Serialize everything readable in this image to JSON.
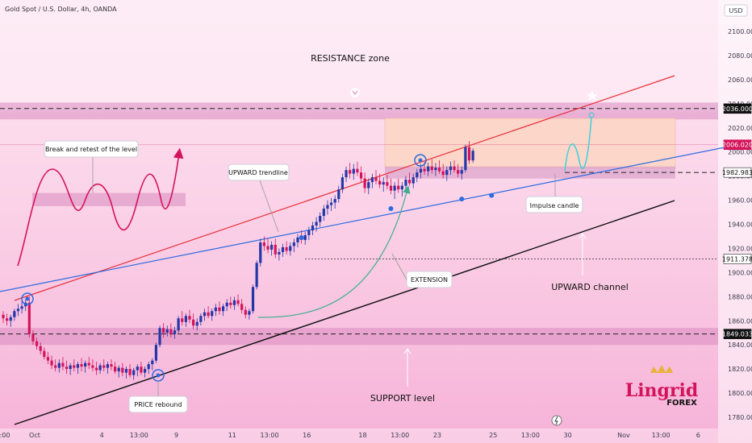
{
  "chart_data": {
    "type": "candlestick",
    "title": "Gold Spot / U.S. Dollar, 4h, OANDA",
    "currency_label": "USD",
    "y_ticks": [
      1780,
      1800,
      1820,
      1840,
      1860,
      1880,
      1900,
      1920,
      1940,
      1960,
      1980,
      2000,
      2020,
      2040,
      2060,
      2080,
      2100
    ],
    "y_tick_labels": [
      "1780.000",
      "1800.000",
      "1820.000",
      "1840.000",
      "1860.000",
      "1880.000",
      "1900.000",
      "1920.000",
      "1940.000",
      "1960.000",
      "1980.000",
      "2000.000",
      "2020.000",
      "2040.000",
      "2060.000",
      "2080.000",
      "2100.000"
    ],
    "x_ticks": [
      {
        "label": ":00",
        "bar": 0
      },
      {
        "label": "Oct",
        "bar": 8
      },
      {
        "label": "4",
        "bar": 26
      },
      {
        "label": "13:00",
        "bar": 36
      },
      {
        "label": "9",
        "bar": 46
      },
      {
        "label": "11",
        "bar": 61
      },
      {
        "label": "13:00",
        "bar": 71
      },
      {
        "label": "16",
        "bar": 81
      },
      {
        "label": "18",
        "bar": 96
      },
      {
        "label": "13:00",
        "bar": 106
      },
      {
        "label": "23",
        "bar": 116
      },
      {
        "label": "25",
        "bar": 131
      },
      {
        "label": "13:00",
        "bar": 141
      },
      {
        "label": "30",
        "bar": 151
      },
      {
        "label": "Nov",
        "bar": 166
      },
      {
        "label": "13:00",
        "bar": 176
      },
      {
        "label": "6",
        "bar": 186
      }
    ],
    "price_labels": [
      {
        "value": 2036.0,
        "text": "2036.000",
        "style": "dark"
      },
      {
        "value": 2006.02,
        "text": "2006.020",
        "style": "red"
      },
      {
        "value": 1982.983,
        "text": "1982.983",
        "style": "white"
      },
      {
        "value": 1911.378,
        "text": "1911.378",
        "style": "white"
      },
      {
        "value": 1849.033,
        "text": "1849.033",
        "style": "dark"
      }
    ],
    "candles": [
      [
        1865,
        1868,
        1858,
        1862
      ],
      [
        1862,
        1866,
        1856,
        1860
      ],
      [
        1860,
        1865,
        1855,
        1863
      ],
      [
        1863,
        1870,
        1860,
        1868
      ],
      [
        1868,
        1874,
        1864,
        1870
      ],
      [
        1870,
        1876,
        1866,
        1872
      ],
      [
        1872,
        1878,
        1868,
        1875
      ],
      [
        1875,
        1880,
        1846,
        1849
      ],
      [
        1849,
        1852,
        1840,
        1843
      ],
      [
        1843,
        1846,
        1836,
        1839
      ],
      [
        1839,
        1842,
        1832,
        1835
      ],
      [
        1835,
        1838,
        1828,
        1830
      ],
      [
        1830,
        1834,
        1824,
        1827
      ],
      [
        1827,
        1831,
        1820,
        1823
      ],
      [
        1823,
        1828,
        1818,
        1821
      ],
      [
        1821,
        1828,
        1817,
        1825
      ],
      [
        1825,
        1830,
        1819,
        1822
      ],
      [
        1822,
        1827,
        1816,
        1820
      ],
      [
        1820,
        1825,
        1815,
        1823
      ],
      [
        1823,
        1828,
        1818,
        1821
      ],
      [
        1821,
        1826,
        1816,
        1824
      ],
      [
        1824,
        1829,
        1818,
        1822
      ],
      [
        1822,
        1827,
        1817,
        1825
      ],
      [
        1825,
        1830,
        1820,
        1823
      ],
      [
        1823,
        1828,
        1818,
        1821
      ],
      [
        1821,
        1826,
        1815,
        1819
      ],
      [
        1819,
        1825,
        1816,
        1823
      ],
      [
        1823,
        1828,
        1818,
        1821
      ],
      [
        1821,
        1826,
        1816,
        1824
      ],
      [
        1824,
        1828,
        1819,
        1822
      ],
      [
        1822,
        1826,
        1816,
        1818
      ],
      [
        1818,
        1823,
        1813,
        1821
      ],
      [
        1821,
        1825,
        1814,
        1817
      ],
      [
        1817,
        1822,
        1812,
        1820
      ],
      [
        1820,
        1824,
        1813,
        1815
      ],
      [
        1815,
        1821,
        1811,
        1819
      ],
      [
        1819,
        1824,
        1814,
        1822
      ],
      [
        1822,
        1826,
        1815,
        1817
      ],
      [
        1817,
        1822,
        1813,
        1820
      ],
      [
        1820,
        1826,
        1816,
        1824
      ],
      [
        1824,
        1829,
        1819,
        1827
      ],
      [
        1827,
        1842,
        1825,
        1840
      ],
      [
        1840,
        1856,
        1838,
        1854
      ],
      [
        1854,
        1858,
        1846,
        1850
      ],
      [
        1850,
        1856,
        1847,
        1853
      ],
      [
        1853,
        1858,
        1846,
        1849
      ],
      [
        1849,
        1855,
        1845,
        1852
      ],
      [
        1852,
        1864,
        1850,
        1862
      ],
      [
        1862,
        1868,
        1856,
        1859
      ],
      [
        1859,
        1866,
        1855,
        1864
      ],
      [
        1864,
        1869,
        1858,
        1861
      ],
      [
        1861,
        1866,
        1853,
        1856
      ],
      [
        1856,
        1862,
        1852,
        1859
      ],
      [
        1859,
        1866,
        1856,
        1864
      ],
      [
        1864,
        1870,
        1860,
        1867
      ],
      [
        1867,
        1872,
        1862,
        1864
      ],
      [
        1864,
        1870,
        1860,
        1868
      ],
      [
        1868,
        1874,
        1864,
        1871
      ],
      [
        1871,
        1876,
        1865,
        1868
      ],
      [
        1868,
        1874,
        1864,
        1872
      ],
      [
        1872,
        1878,
        1868,
        1875
      ],
      [
        1875,
        1880,
        1870,
        1873
      ],
      [
        1873,
        1880,
        1869,
        1877
      ],
      [
        1877,
        1882,
        1872,
        1874
      ],
      [
        1874,
        1878,
        1866,
        1869
      ],
      [
        1869,
        1872,
        1862,
        1865
      ],
      [
        1865,
        1870,
        1861,
        1868
      ],
      [
        1868,
        1890,
        1866,
        1888
      ],
      [
        1888,
        1910,
        1886,
        1908
      ],
      [
        1908,
        1928,
        1905,
        1925
      ],
      [
        1925,
        1930,
        1918,
        1922
      ],
      [
        1922,
        1928,
        1916,
        1919
      ],
      [
        1919,
        1926,
        1914,
        1923
      ],
      [
        1923,
        1928,
        1912,
        1915
      ],
      [
        1915,
        1920,
        1910,
        1917
      ],
      [
        1917,
        1924,
        1913,
        1921
      ],
      [
        1921,
        1926,
        1915,
        1918
      ],
      [
        1918,
        1925,
        1914,
        1922
      ],
      [
        1922,
        1928,
        1917,
        1925
      ],
      [
        1925,
        1932,
        1921,
        1929
      ],
      [
        1929,
        1935,
        1924,
        1927
      ],
      [
        1927,
        1934,
        1923,
        1931
      ],
      [
        1931,
        1938,
        1927,
        1935
      ],
      [
        1935,
        1942,
        1931,
        1939
      ],
      [
        1939,
        1946,
        1934,
        1942
      ],
      [
        1942,
        1950,
        1938,
        1947
      ],
      [
        1947,
        1956,
        1943,
        1953
      ],
      [
        1953,
        1960,
        1948,
        1956
      ],
      [
        1956,
        1962,
        1951,
        1958
      ],
      [
        1958,
        1964,
        1953,
        1961
      ],
      [
        1961,
        1972,
        1958,
        1969
      ],
      [
        1969,
        1982,
        1966,
        1979
      ],
      [
        1979,
        1988,
        1975,
        1985
      ],
      [
        1985,
        1991,
        1978,
        1982
      ],
      [
        1982,
        1990,
        1977,
        1986
      ],
      [
        1986,
        1992,
        1980,
        1983
      ],
      [
        1983,
        1988,
        1975,
        1978
      ],
      [
        1978,
        1983,
        1966,
        1970
      ],
      [
        1970,
        1978,
        1965,
        1975
      ],
      [
        1975,
        1982,
        1970,
        1979
      ],
      [
        1979,
        1985,
        1973,
        1976
      ],
      [
        1976,
        1982,
        1970,
        1973
      ],
      [
        1973,
        1979,
        1967,
        1975
      ],
      [
        1975,
        1981,
        1969,
        1972
      ],
      [
        1972,
        1978,
        1965,
        1968
      ],
      [
        1968,
        1975,
        1961,
        1972
      ],
      [
        1972,
        1978,
        1966,
        1969
      ],
      [
        1969,
        1975,
        1963,
        1972
      ],
      [
        1972,
        1980,
        1968,
        1977
      ],
      [
        1977,
        1983,
        1972,
        1974
      ],
      [
        1974,
        1982,
        1970,
        1979
      ],
      [
        1979,
        1986,
        1975,
        1983
      ],
      [
        1983,
        1990,
        1978,
        1986
      ],
      [
        1986,
        1992,
        1981,
        1984
      ],
      [
        1984,
        1991,
        1980,
        1988
      ],
      [
        1988,
        1994,
        1982,
        1985
      ],
      [
        1985,
        1991,
        1980,
        1987
      ],
      [
        1987,
        1993,
        1982,
        1984
      ],
      [
        1984,
        1990,
        1978,
        1981
      ],
      [
        1981,
        1988,
        1976,
        1985
      ],
      [
        1985,
        1992,
        1981,
        1988
      ],
      [
        1988,
        1993,
        1983,
        1985
      ],
      [
        1985,
        1990,
        1979,
        1982
      ],
      [
        1982,
        1988,
        1977,
        1985
      ],
      [
        1985,
        2006,
        1983,
        2004
      ],
      [
        2004,
        2009,
        1990,
        1993
      ],
      [
        1993,
        2003,
        1991,
        2001
      ]
    ],
    "projection_path": [
      [
        124,
        2001
      ],
      [
        127,
        1990
      ],
      [
        130,
        2007
      ],
      [
        133,
        1997
      ],
      [
        136,
        2013
      ],
      [
        138,
        2029
      ]
    ]
  },
  "annotations": {
    "resistance_zone": "RESISTANCE zone",
    "break_retest": "Break and retest of the level",
    "upward_trendline": "UPWARD trendline",
    "extension": "EXTENSION",
    "impulse_candle": "Impulse candle",
    "upward_channel": "UPWARD channel",
    "support_level": "SUPPORT level",
    "price_rebound": "PRICE rebound"
  },
  "brand": {
    "name": "Lingrid",
    "sub": "FOREX"
  },
  "colors": {
    "up": "#2436a8",
    "down": "#d4145a",
    "resistance_line": "#e8303a",
    "trend_line": "#2d6be0",
    "support_line": "#0a0a0a",
    "projection": "#3fd0d8",
    "extension_arrow": "#3fae8e"
  }
}
